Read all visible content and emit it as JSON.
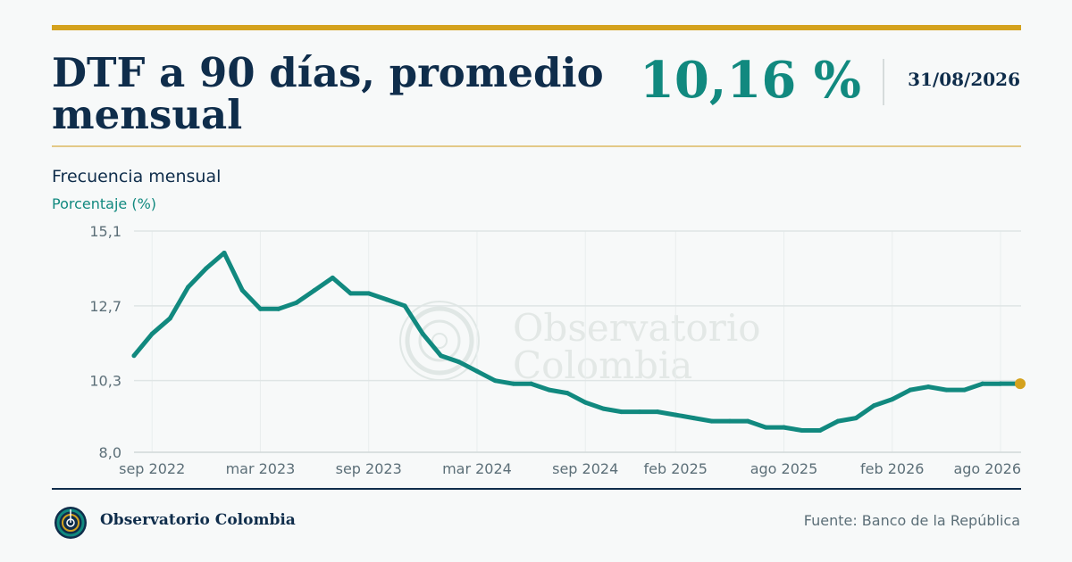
{
  "header": {
    "title": "DTF a 90 días, promedio mensual",
    "value": "10,16 %",
    "date": "31/08/2026"
  },
  "subtitle": "Frecuencia mensual",
  "y_axis_label": "Porcentaje (%)",
  "watermark": {
    "line1": "Observatorio",
    "line2": "Colombia"
  },
  "footer": {
    "brand": "Observatorio Colombia",
    "source": "Fuente: Banco de la República"
  },
  "colors": {
    "line": "#11897f",
    "last_point": "#d4a21e",
    "accent_gold": "#d4a21e",
    "navy": "#0f2d4b"
  },
  "chart_data": {
    "type": "line",
    "ylim": [
      8.0,
      15.1
    ],
    "yticks": [
      {
        "value": 8.0,
        "label": "8,0"
      },
      {
        "value": 10.3,
        "label": "10,3"
      },
      {
        "value": 12.7,
        "label": "12,7"
      },
      {
        "value": 15.1,
        "label": "15,1"
      }
    ],
    "xticks": [
      {
        "x": "2022-09",
        "label": "sep 2022"
      },
      {
        "x": "2023-03",
        "label": "mar 2023"
      },
      {
        "x": "2023-09",
        "label": "sep 2023"
      },
      {
        "x": "2024-03",
        "label": "mar 2024"
      },
      {
        "x": "2024-09",
        "label": "sep 2024"
      },
      {
        "x": "2025-02",
        "label": "feb 2025"
      },
      {
        "x": "2025-08",
        "label": "ago 2025"
      },
      {
        "x": "2026-02",
        "label": "feb 2026"
      },
      {
        "x": "2026-08",
        "label": "ago 2026"
      }
    ],
    "grid": true,
    "series": [
      {
        "x": [
          "2022-08",
          "2022-09",
          "2022-10",
          "2022-11",
          "2022-12",
          "2023-01",
          "2023-02",
          "2023-03",
          "2023-04",
          "2023-05",
          "2023-06",
          "2023-07",
          "2023-08",
          "2023-09",
          "2023-10",
          "2023-11",
          "2023-12",
          "2024-01",
          "2024-02",
          "2024-03",
          "2024-04",
          "2024-05",
          "2024-06",
          "2024-07",
          "2024-08",
          "2024-09",
          "2024-10",
          "2024-11",
          "2024-12",
          "2025-01",
          "2025-02",
          "2025-03",
          "2025-04",
          "2025-05",
          "2025-06",
          "2025-07",
          "2025-08",
          "2025-09",
          "2025-10",
          "2025-11",
          "2025-12",
          "2026-01",
          "2026-02",
          "2026-03",
          "2026-04",
          "2026-05",
          "2026-06",
          "2026-07",
          "2026-08"
        ],
        "y": [
          11.1,
          11.8,
          12.3,
          13.3,
          13.9,
          14.4,
          13.2,
          12.6,
          12.6,
          12.8,
          13.2,
          13.6,
          13.1,
          13.1,
          12.9,
          12.7,
          11.8,
          11.1,
          10.9,
          10.6,
          10.3,
          10.2,
          10.2,
          10.0,
          9.9,
          9.6,
          9.4,
          9.3,
          9.3,
          9.3,
          9.2,
          9.1,
          9.0,
          9.0,
          9.0,
          8.8,
          8.8,
          8.7,
          8.7,
          9.0,
          9.1,
          9.5,
          9.7,
          10.0,
          10.1,
          10.0,
          10.0,
          10.2,
          10.2
        ]
      }
    ]
  }
}
